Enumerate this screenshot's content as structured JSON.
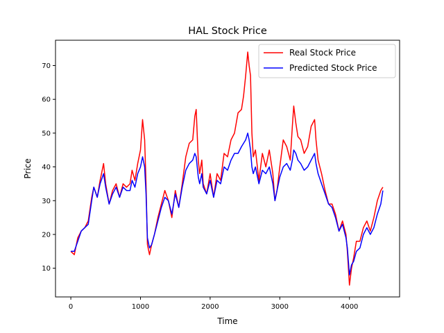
{
  "chart_data": {
    "type": "line",
    "title": "HAL Stock Price",
    "xlabel": "Time",
    "ylabel": "Price",
    "xlim": [
      -220,
      4720
    ],
    "ylim": [
      1.5,
      77.5
    ],
    "xticks": [
      0,
      1000,
      2000,
      3000,
      4000
    ],
    "yticks": [
      10,
      20,
      30,
      40,
      50,
      60,
      70
    ],
    "grid": false,
    "legend_position": "top-right",
    "series": [
      {
        "name": "Real Stock Price",
        "color": "#ff0000",
        "x": [
          0,
          50,
          100,
          150,
          200,
          250,
          300,
          330,
          380,
          420,
          470,
          500,
          550,
          600,
          650,
          700,
          750,
          800,
          850,
          880,
          920,
          960,
          1000,
          1030,
          1060,
          1080,
          1100,
          1130,
          1160,
          1200,
          1250,
          1300,
          1350,
          1400,
          1450,
          1500,
          1550,
          1600,
          1650,
          1700,
          1750,
          1780,
          1800,
          1830,
          1850,
          1880,
          1900,
          1950,
          2000,
          2050,
          2100,
          2150,
          2200,
          2250,
          2300,
          2350,
          2400,
          2450,
          2480,
          2510,
          2540,
          2560,
          2580,
          2600,
          2620,
          2650,
          2700,
          2750,
          2800,
          2850,
          2900,
          2930,
          2960,
          3000,
          3050,
          3100,
          3150,
          3180,
          3200,
          3230,
          3260,
          3300,
          3350,
          3400,
          3450,
          3500,
          3520,
          3550,
          3600,
          3650,
          3700,
          3750,
          3800,
          3850,
          3900,
          3950,
          3970,
          4000,
          4030,
          4060,
          4100,
          4150,
          4200,
          4250,
          4300,
          4350,
          4400,
          4450,
          4480
        ],
        "values": [
          15,
          14,
          19,
          21,
          22,
          24,
          31,
          34,
          31,
          36,
          41,
          35,
          29,
          33,
          35,
          31,
          35,
          34,
          35,
          39,
          36,
          41,
          45,
          54,
          48,
          35,
          17,
          14,
          17,
          20,
          25,
          29,
          33,
          30,
          25,
          33,
          28,
          35,
          43,
          47,
          48,
          55,
          57,
          42,
          38,
          42,
          35,
          32,
          38,
          31,
          38,
          36,
          44,
          43,
          48,
          50,
          56,
          57,
          61,
          67,
          74,
          70,
          67,
          50,
          43,
          45,
          36,
          44,
          40,
          45,
          38,
          30,
          33,
          40,
          48,
          46,
          42,
          52,
          58,
          53,
          49,
          48,
          44,
          46,
          52,
          54,
          48,
          42,
          38,
          33,
          29,
          29,
          26,
          21,
          24,
          20,
          15,
          5,
          10,
          13,
          18,
          18,
          22,
          24,
          21,
          25,
          30,
          33,
          34
        ]
      },
      {
        "name": "Predicted Stock Price",
        "color": "#0000ff",
        "x": [
          0,
          50,
          100,
          150,
          200,
          250,
          300,
          330,
          380,
          420,
          470,
          500,
          550,
          600,
          650,
          700,
          750,
          800,
          850,
          880,
          920,
          960,
          1000,
          1030,
          1060,
          1080,
          1100,
          1130,
          1160,
          1200,
          1250,
          1300,
          1350,
          1400,
          1450,
          1500,
          1550,
          1600,
          1650,
          1700,
          1750,
          1780,
          1800,
          1830,
          1850,
          1880,
          1900,
          1950,
          2000,
          2050,
          2100,
          2150,
          2200,
          2250,
          2300,
          2350,
          2400,
          2450,
          2480,
          2510,
          2540,
          2560,
          2580,
          2600,
          2620,
          2650,
          2700,
          2750,
          2800,
          2850,
          2900,
          2930,
          2960,
          3000,
          3050,
          3100,
          3150,
          3180,
          3200,
          3230,
          3260,
          3300,
          3350,
          3400,
          3450,
          3500,
          3520,
          3550,
          3600,
          3650,
          3700,
          3750,
          3800,
          3850,
          3900,
          3950,
          3970,
          4000,
          4030,
          4060,
          4100,
          4150,
          4200,
          4250,
          4300,
          4350,
          4400,
          4450,
          4480
        ],
        "values": [
          15,
          15,
          18,
          21,
          22,
          23,
          30,
          34,
          31,
          35,
          38,
          34,
          29,
          32,
          34,
          31,
          34,
          33,
          33,
          36,
          34,
          38,
          40,
          43,
          40,
          32,
          19,
          16,
          17,
          20,
          24,
          28,
          31,
          30,
          26,
          32,
          28,
          34,
          39,
          41,
          42,
          44,
          43,
          37,
          35,
          38,
          34,
          32,
          36,
          31,
          36,
          35,
          40,
          39,
          42,
          44,
          44,
          46,
          47,
          48,
          50,
          48,
          45,
          40,
          38,
          40,
          35,
          39,
          38,
          40,
          35,
          30,
          33,
          37,
          40,
          41,
          39,
          42,
          45,
          44,
          42,
          41,
          39,
          40,
          42,
          44,
          41,
          38,
          35,
          32,
          29,
          28,
          25,
          21,
          23,
          19,
          16,
          8,
          11,
          12,
          15,
          16,
          20,
          22,
          20,
          22,
          26,
          29,
          33
        ]
      }
    ]
  }
}
